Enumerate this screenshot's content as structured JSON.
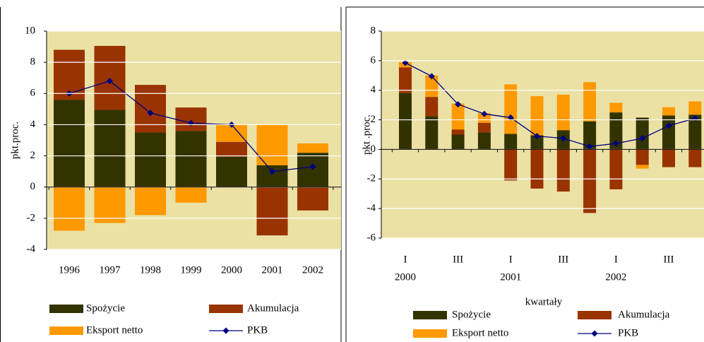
{
  "chart_data": [
    {
      "type": "bar",
      "stacked": true,
      "grid": true,
      "plot_background": "#ebe1a5",
      "ylabel": "pkt.proc.",
      "categories": [
        "1996",
        "1997",
        "1998",
        "1999",
        "2000",
        "2001",
        "2002"
      ],
      "ylim": [
        -4,
        10
      ],
      "yticks": [
        -4,
        -2,
        0,
        2,
        4,
        6,
        8,
        10
      ],
      "series": [
        {
          "name": "Spożycie",
          "color": "#333300",
          "type": "bar",
          "values": [
            5.6,
            4.95,
            3.5,
            3.6,
            1.95,
            1.4,
            2.2
          ]
        },
        {
          "name": "Akumulacja",
          "color": "#993300",
          "type": "bar",
          "values": [
            3.2,
            4.1,
            3.05,
            1.5,
            0.95,
            -3.1,
            -1.5
          ]
        },
        {
          "name": "Eksport netto",
          "color": "#ff9900",
          "type": "bar",
          "values": [
            -2.8,
            -2.3,
            -1.8,
            -1.0,
            1.1,
            2.6,
            0.6
          ]
        },
        {
          "name": "PKB",
          "color": "#000080",
          "type": "line",
          "values": [
            6.0,
            6.8,
            4.75,
            4.1,
            4.0,
            1.0,
            1.3
          ]
        }
      ]
    },
    {
      "type": "bar",
      "stacked": true,
      "grid": true,
      "plot_background": "#ebe1a5",
      "ylabel": "pkt .proc.",
      "xlabel": "kwartały",
      "categories": [
        "I",
        null,
        "III",
        null,
        "I",
        null,
        "III",
        null,
        "I",
        null,
        "III",
        null
      ],
      "group_labels": [
        "2000",
        "2001",
        "2002"
      ],
      "ylim": [
        -6,
        8
      ],
      "yticks": [
        -6,
        -4,
        -2,
        0,
        2,
        4,
        6,
        8
      ],
      "series": [
        {
          "name": "Spożycie",
          "color": "#333300",
          "type": "bar",
          "values": [
            3.8,
            2.25,
            1.0,
            1.15,
            1.05,
            0.95,
            1.3,
            1.9,
            2.5,
            2.15,
            2.3,
            2.35
          ]
        },
        {
          "name": "Akumulacja",
          "color": "#993300",
          "type": "bar",
          "values": [
            1.75,
            1.3,
            0.35,
            0.65,
            -2.1,
            -2.65,
            -2.85,
            -4.3,
            -2.7,
            -1.05,
            -1.2,
            -1.2
          ]
        },
        {
          "name": "Eksport netto",
          "color": "#ff9900",
          "type": "bar",
          "values": [
            0.35,
            1.45,
            1.75,
            0.65,
            3.35,
            2.65,
            2.4,
            2.65,
            0.65,
            -0.25,
            0.55,
            0.9
          ]
        },
        {
          "name": "PKB",
          "color": "#000080",
          "type": "line",
          "values": [
            5.85,
            4.95,
            3.05,
            2.4,
            2.15,
            0.9,
            0.75,
            0.2,
            0.4,
            0.75,
            1.6,
            2.1
          ]
        }
      ]
    }
  ]
}
